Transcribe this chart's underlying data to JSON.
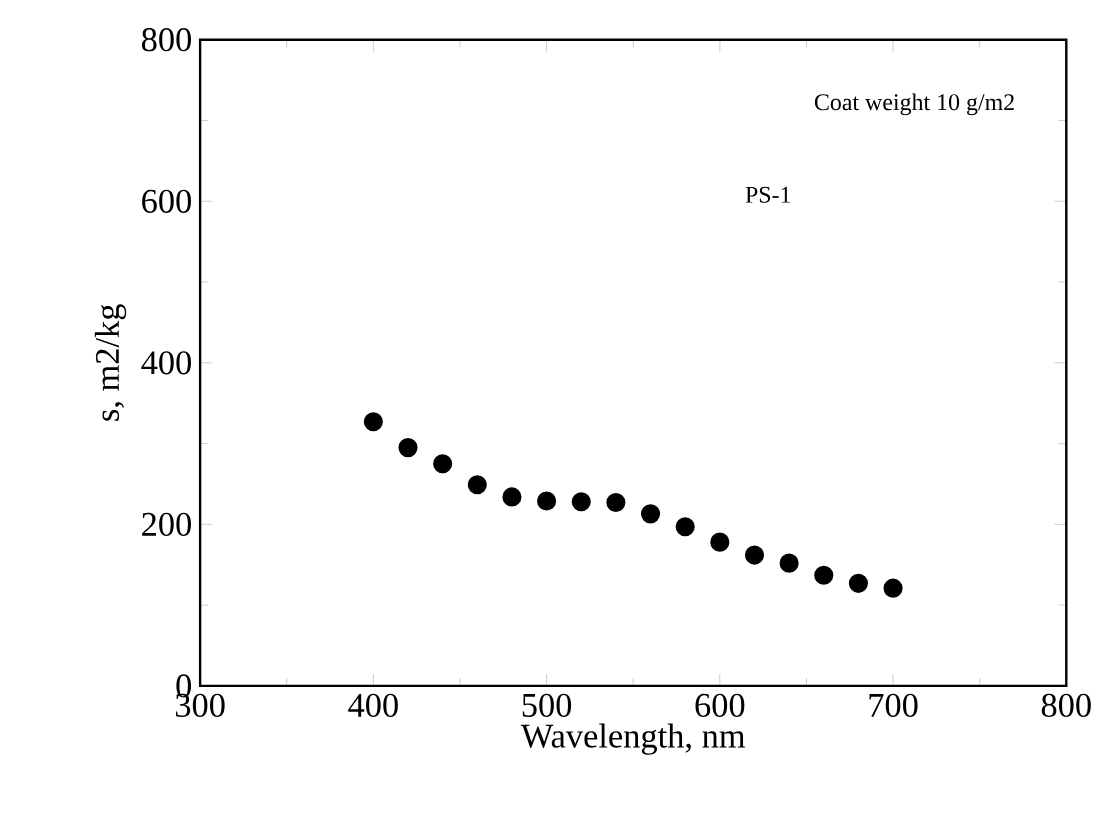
{
  "chart_data": {
    "type": "scatter",
    "xlabel": "Wavelength, nm",
    "ylabel": "s, m2/kg",
    "annotations": [
      "Coat weight 10 g/m2",
      "PS-1"
    ],
    "x": [
      400,
      420,
      440,
      460,
      480,
      500,
      520,
      540,
      560,
      580,
      600,
      620,
      640,
      660,
      680,
      700
    ],
    "values": [
      327,
      295,
      275,
      249,
      234,
      229,
      228,
      227,
      213,
      197,
      178,
      162,
      152,
      137,
      127,
      121
    ],
    "color": "#000000",
    "xlim": [
      300,
      800
    ],
    "xticks": [
      300,
      400,
      500,
      600,
      700,
      800
    ],
    "ylim": [
      0,
      800
    ],
    "yticks": [
      0,
      200,
      400,
      600,
      800
    ],
    "grid": false
  }
}
